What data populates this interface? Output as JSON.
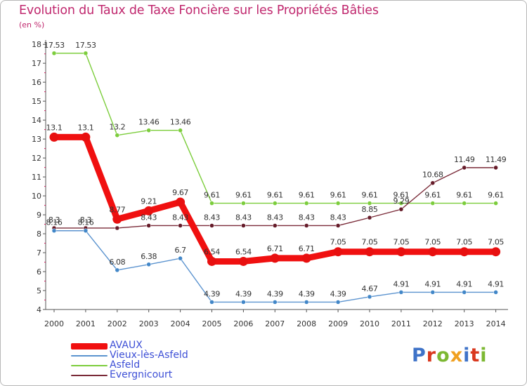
{
  "header": {
    "title": "Evolution du Taux de Taxe Foncière sur les Propriétés Bâties",
    "unit": "(en %)"
  },
  "colors": {
    "title": "#c0286e",
    "axis": "#555555",
    "tick_tiny": "#d02060",
    "legend_text": "#3d4fd6"
  },
  "logo": {
    "text": "Proxiti",
    "letter_colors": [
      "#3f73c8",
      "#d9381e",
      "#7cb832",
      "#f0a020",
      "#3f73c8",
      "#d9381e",
      "#7cb832"
    ]
  },
  "chart_data": {
    "type": "line",
    "title": "Evolution du Taux de Taxe Foncière sur les Propriétés Bâties",
    "ylabel": "(en %)",
    "xlabel": "",
    "ylim": [
      4,
      18
    ],
    "yticks": [
      4,
      5,
      6,
      7,
      8,
      9,
      10,
      11,
      12,
      13,
      14,
      15,
      16,
      17,
      18
    ],
    "grid": false,
    "legend_position": "bottom-left",
    "x": [
      "2000",
      "2001",
      "2002",
      "2003",
      "2004",
      "2005",
      "2006",
      "2007",
      "2008",
      "2009",
      "2010",
      "2011",
      "2012",
      "2013",
      "2014"
    ],
    "series": [
      {
        "name": "Asfeld",
        "color": "#7ccd3c",
        "point_color": "#7ccd3c",
        "weight": "thin",
        "values": [
          17.53,
          17.53,
          13.2,
          13.46,
          13.46,
          9.61,
          9.61,
          9.61,
          9.61,
          9.61,
          9.61,
          9.61,
          9.61,
          9.61,
          9.61
        ],
        "labels": [
          "17.53",
          "17.53",
          "13.2",
          "13.46",
          "13.46",
          "9.61",
          "9.61",
          "9.61",
          "9.61",
          "9.61",
          "9.61",
          "9.61",
          "9.61",
          "9.61",
          "9.61"
        ]
      },
      {
        "name": "Evergnicourt",
        "color": "#7a2a38",
        "point_color": "#661c2a",
        "weight": "thin",
        "values": [
          8.3,
          8.3,
          8.3,
          8.43,
          8.43,
          8.43,
          8.43,
          8.43,
          8.43,
          8.43,
          8.85,
          9.29,
          10.68,
          11.49,
          11.49
        ],
        "labels": [
          "8.3",
          "8.3",
          "",
          "8.43",
          "8.43",
          "8.43",
          "8.43",
          "8.43",
          "8.43",
          "8.43",
          "8.85",
          "9.29",
          "10.68",
          "11.49",
          "11.49"
        ]
      },
      {
        "name": "Vieux-lès-Asfeld",
        "color": "#5b93cf",
        "point_color": "#4287c8",
        "weight": "thin",
        "values": [
          8.16,
          8.16,
          6.08,
          6.38,
          6.7,
          4.39,
          4.39,
          4.39,
          4.39,
          4.39,
          4.67,
          4.91,
          4.91,
          4.91,
          4.91
        ],
        "labels": [
          "8.16",
          "8.16",
          "6.08",
          "6.38",
          "6.7",
          "4.39",
          "4.39",
          "4.39",
          "4.39",
          "4.39",
          "4.67",
          "4.91",
          "4.91",
          "4.91",
          "4.91"
        ]
      },
      {
        "name": "AVAUX",
        "color": "#f01010",
        "point_color": "#e81010",
        "weight": "thick",
        "values": [
          13.1,
          13.1,
          8.77,
          9.21,
          9.67,
          6.54,
          6.54,
          6.71,
          6.71,
          7.05,
          7.05,
          7.05,
          7.05,
          7.05,
          7.05
        ],
        "labels": [
          "13.1",
          "13.1",
          "8.77",
          "9.21",
          "9.67",
          "6.54",
          "6.54",
          "6.71",
          "6.71",
          "7.05",
          "7.05",
          "7.05",
          "7.05",
          "7.05",
          "7.05"
        ]
      }
    ],
    "legend_order": [
      "AVAUX",
      "Vieux-lès-Asfeld",
      "Asfeld",
      "Evergnicourt"
    ]
  }
}
